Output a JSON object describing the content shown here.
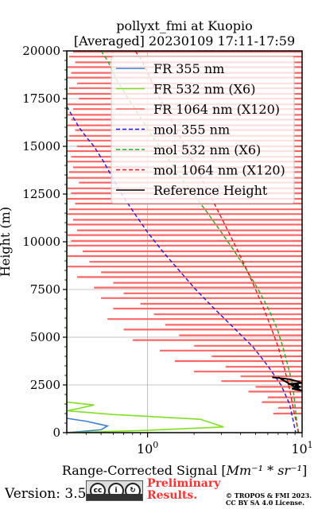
{
  "footer": {
    "version": "Version: 3.5",
    "preliminary_line1": "Preliminary",
    "preliminary_line2": "Results.",
    "copyright_line1": "© TROPOS & FMI 2023.",
    "copyright_line2": "CC BY SA 4.0 License.",
    "cc_badge_icon": "cc-by-sa-license-icon"
  },
  "chart_data": {
    "type": "line",
    "title": "pollyxt_fmi at Kuopio",
    "subtitle": "[Averaged] 20230109 17:11-17:59",
    "xlabel_prefix": "Range-Corrected Signal [",
    "xlabel_math": "Mm⁻¹ * sr⁻¹",
    "xlabel_suffix": "]",
    "ylabel": "Height (m)",
    "xscale": "log",
    "xlim": [
      0.3,
      10
    ],
    "ylim": [
      0,
      20000
    ],
    "xticks": [
      {
        "value": 1,
        "label": "10",
        "exp": "0"
      },
      {
        "value": 10,
        "label": "10",
        "exp": "1"
      }
    ],
    "yticks": [
      0,
      2500,
      5000,
      7500,
      10000,
      12500,
      15000,
      17500,
      20000
    ],
    "grid": true,
    "legend_position": "top-right",
    "colors": {
      "fr355": "#3b7fd8",
      "fr532": "#80e020",
      "fr1064": "#ff6666",
      "mol355": "#1a1ae6",
      "mol532": "#19b319",
      "mol1064": "#e61a1a",
      "ref": "#000000"
    },
    "legend": [
      {
        "label": "FR 355 nm",
        "color": "#3b7fd8",
        "style": "solid"
      },
      {
        "label": "FR 532 nm (X6)",
        "color": "#80e020",
        "style": "solid"
      },
      {
        "label": "FR 1064 nm (X120)",
        "color": "#ff6666",
        "style": "solid"
      },
      {
        "label": "mol 355 nm",
        "color": "#1a1ae6",
        "style": "dashed"
      },
      {
        "label": "mol 532 nm (X6)",
        "color": "#19b319",
        "style": "dashed"
      },
      {
        "label": "mol 1064 nm (X120)",
        "color": "#e61a1a",
        "style": "dashed"
      },
      {
        "label": "Reference Height",
        "color": "#000000",
        "style": "solid"
      }
    ],
    "series": [
      {
        "key": "mol355",
        "x": [
          0.3,
          0.32,
          0.36,
          0.4,
          0.45,
          0.52,
          0.58,
          0.68,
          0.82,
          1.0,
          1.25,
          1.6,
          2.05,
          2.7,
          3.6,
          4.8,
          6.0,
          7.3,
          8.3,
          9.1
        ],
        "y": [
          17100,
          16700,
          16000,
          15500,
          15000,
          14200,
          13500,
          12500,
          11500,
          10500,
          9500,
          8500,
          7500,
          6500,
          5500,
          4500,
          3500,
          2500,
          1500,
          0
        ]
      },
      {
        "key": "mol532",
        "x": [
          0.5,
          0.55,
          0.63,
          0.75,
          0.9,
          1.08,
          1.32,
          1.6,
          1.98,
          2.45,
          3.0,
          3.65,
          4.4,
          5.2,
          6.05,
          6.85,
          7.5,
          8.1,
          8.7,
          9.4
        ],
        "y": [
          20000,
          19500,
          18500,
          17500,
          16500,
          15500,
          14500,
          13500,
          12500,
          11500,
          10500,
          9500,
          8500,
          7500,
          6500,
          5500,
          4500,
          3500,
          2500,
          0
        ]
      },
      {
        "key": "mol1064",
        "x": [
          0.83,
          0.92,
          1.05,
          1.2,
          1.4,
          1.62,
          1.88,
          2.18,
          2.52,
          2.9,
          3.35,
          3.85,
          4.4,
          5.0,
          5.65,
          6.3,
          7.0,
          7.6,
          8.2,
          8.9,
          9.5
        ],
        "y": [
          20000,
          19500,
          18500,
          17500,
          16500,
          15500,
          14500,
          13500,
          12500,
          11500,
          10500,
          9500,
          8500,
          7500,
          6500,
          5500,
          4500,
          3500,
          2500,
          1000,
          0
        ]
      },
      {
        "key": "fr355",
        "x": [
          0.3,
          0.5,
          0.55,
          0.4,
          0.3,
          0.3
        ],
        "y": [
          0,
          150,
          350,
          600,
          750,
          20000
        ]
      },
      {
        "key": "fr532",
        "x": [
          0.3,
          1.0,
          3.1,
          2.2,
          0.6,
          0.3,
          0.35,
          0.45,
          0.3,
          0.3
        ],
        "y": [
          0,
          120,
          300,
          700,
          950,
          1150,
          1250,
          1450,
          1600,
          20000
        ]
      },
      {
        "key": "ref",
        "x": [
          6.4,
          8.3,
          9.2,
          10,
          8.1,
          9.5,
          9.0,
          9.8,
          8.6,
          9.9,
          7.0
        ],
        "y": [
          2900,
          2800,
          2700,
          2600,
          2550,
          2500,
          2450,
          2400,
          2300,
          2200,
          2900
        ]
      }
    ],
    "noise_1064": {
      "style": "horizontal spikes reaching toward the right edge",
      "rows": [
        {
          "h": 19950,
          "x0": 0.33,
          "x1": 10
        },
        {
          "h": 19700,
          "x0": 0.31,
          "x1": 10
        },
        {
          "h": 19400,
          "x0": 0.34,
          "x1": 10
        },
        {
          "h": 19150,
          "x0": 0.3,
          "x1": 10
        },
        {
          "h": 18850,
          "x0": 0.32,
          "x1": 10
        },
        {
          "h": 18600,
          "x0": 0.3,
          "x1": 10
        },
        {
          "h": 18300,
          "x0": 0.35,
          "x1": 10
        },
        {
          "h": 18050,
          "x0": 0.31,
          "x1": 10
        },
        {
          "h": 17750,
          "x0": 0.3,
          "x1": 10
        },
        {
          "h": 17500,
          "x0": 0.36,
          "x1": 10
        },
        {
          "h": 17200,
          "x0": 0.3,
          "x1": 10
        },
        {
          "h": 16950,
          "x0": 0.33,
          "x1": 10
        },
        {
          "h": 16650,
          "x0": 0.3,
          "x1": 10
        },
        {
          "h": 16400,
          "x0": 0.32,
          "x1": 10
        },
        {
          "h": 16100,
          "x0": 0.3,
          "x1": 10
        },
        {
          "h": 15850,
          "x0": 0.34,
          "x1": 10
        },
        {
          "h": 15550,
          "x0": 0.31,
          "x1": 10
        },
        {
          "h": 15300,
          "x0": 0.3,
          "x1": 10
        },
        {
          "h": 15000,
          "x0": 0.35,
          "x1": 10
        },
        {
          "h": 14750,
          "x0": 0.3,
          "x1": 10
        },
        {
          "h": 14450,
          "x0": 0.32,
          "x1": 10
        },
        {
          "h": 14200,
          "x0": 0.3,
          "x1": 10
        },
        {
          "h": 13900,
          "x0": 0.33,
          "x1": 10
        },
        {
          "h": 13650,
          "x0": 0.31,
          "x1": 10
        },
        {
          "h": 13350,
          "x0": 0.3,
          "x1": 10
        },
        {
          "h": 13100,
          "x0": 0.36,
          "x1": 10
        },
        {
          "h": 12800,
          "x0": 0.3,
          "x1": 10
        },
        {
          "h": 12550,
          "x0": 0.32,
          "x1": 10
        },
        {
          "h": 12250,
          "x0": 0.3,
          "x1": 10
        },
        {
          "h": 12000,
          "x0": 0.34,
          "x1": 10
        },
        {
          "h": 11700,
          "x0": 0.31,
          "x1": 10
        },
        {
          "h": 11450,
          "x0": 0.3,
          "x1": 10
        },
        {
          "h": 11150,
          "x0": 0.33,
          "x1": 10
        },
        {
          "h": 10900,
          "x0": 0.3,
          "x1": 10
        },
        {
          "h": 10600,
          "x0": 0.35,
          "x1": 10
        },
        {
          "h": 10350,
          "x0": 0.3,
          "x1": 10
        },
        {
          "h": 10050,
          "x0": 0.32,
          "x1": 10
        },
        {
          "h": 9800,
          "x0": 0.3,
          "x1": 10
        },
        {
          "h": 9500,
          "x0": 0.38,
          "x1": 10
        },
        {
          "h": 9250,
          "x0": 0.3,
          "x1": 10
        },
        {
          "h": 8950,
          "x0": 0.42,
          "x1": 10
        },
        {
          "h": 8700,
          "x0": 0.3,
          "x1": 10
        },
        {
          "h": 8400,
          "x0": 0.5,
          "x1": 10
        },
        {
          "h": 8150,
          "x0": 0.35,
          "x1": 10
        },
        {
          "h": 7850,
          "x0": 0.6,
          "x1": 10
        },
        {
          "h": 7600,
          "x0": 0.45,
          "x1": 10
        },
        {
          "h": 7300,
          "x0": 0.7,
          "x1": 10
        },
        {
          "h": 7050,
          "x0": 0.5,
          "x1": 10
        },
        {
          "h": 6750,
          "x0": 0.9,
          "x1": 10
        },
        {
          "h": 6500,
          "x0": 0.6,
          "x1": 10
        },
        {
          "h": 6200,
          "x0": 1.1,
          "x1": 10
        },
        {
          "h": 5950,
          "x0": 0.55,
          "x1": 10
        },
        {
          "h": 5650,
          "x0": 1.3,
          "x1": 10
        },
        {
          "h": 5400,
          "x0": 0.7,
          "x1": 10
        },
        {
          "h": 5100,
          "x0": 1.6,
          "x1": 10
        },
        {
          "h": 4850,
          "x0": 0.8,
          "x1": 10
        },
        {
          "h": 4550,
          "x0": 2.0,
          "x1": 10
        },
        {
          "h": 4300,
          "x0": 1.2,
          "x1": 10
        },
        {
          "h": 4000,
          "x0": 2.6,
          "x1": 10
        },
        {
          "h": 3750,
          "x0": 1.5,
          "x1": 10
        },
        {
          "h": 3450,
          "x0": 3.2,
          "x1": 10
        },
        {
          "h": 3200,
          "x0": 2.0,
          "x1": 10
        },
        {
          "h": 2950,
          "x0": 4.0,
          "x1": 10
        },
        {
          "h": 2700,
          "x0": 3.0,
          "x1": 10
        },
        {
          "h": 2400,
          "x0": 5.0,
          "x1": 10
        },
        {
          "h": 2150,
          "x0": 4.5,
          "x1": 10
        },
        {
          "h": 1850,
          "x0": 6.0,
          "x1": 10
        },
        {
          "h": 1600,
          "x0": 5.5,
          "x1": 10
        },
        {
          "h": 1300,
          "x0": 7.0,
          "x1": 10
        },
        {
          "h": 1000,
          "x0": 6.5,
          "x1": 10
        }
      ]
    }
  }
}
